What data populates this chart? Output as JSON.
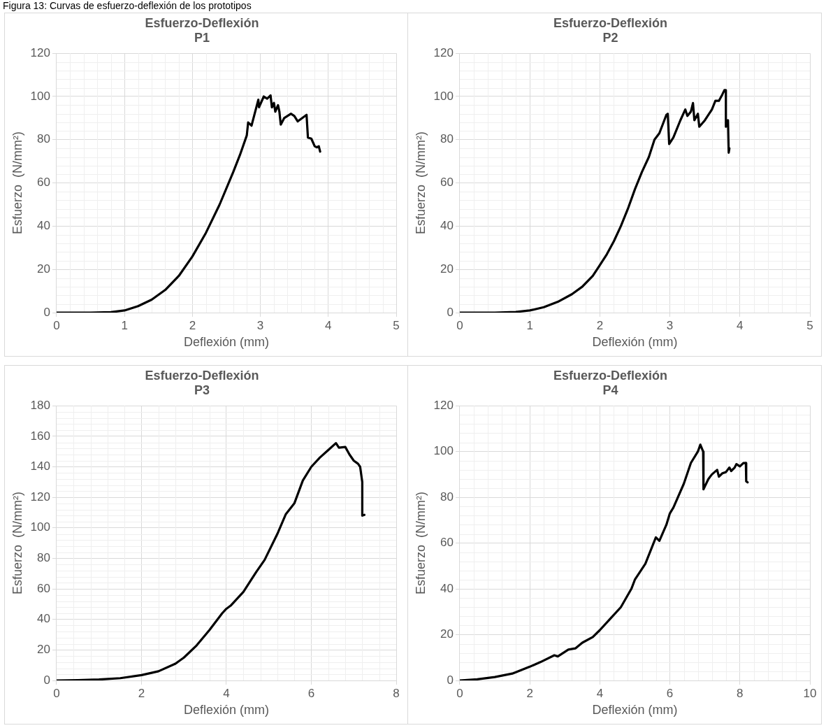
{
  "chart_data": [
    {
      "type": "line",
      "title": "Esfuerzo-Deflexión",
      "subtitle": "P1",
      "xlabel": "Deflexión (mm)",
      "ylabel": "Esfuerzo  (N/mm²)",
      "annotations": [
        "Figura 13: Curvas de esfuerzo-deflexión de los prototipos"
      ],
      "xlim": [
        0,
        5
      ],
      "xticks": [
        0,
        1,
        2,
        3,
        4,
        5
      ],
      "ylim": [
        0,
        120
      ],
      "yticks": [
        0,
        20,
        40,
        60,
        80,
        100,
        120
      ],
      "grid": true,
      "legend": false,
      "marker": "none",
      "line_style": "solid",
      "series": [
        {
          "color": "#000000",
          "x": [
            0,
            0.5,
            0.8,
            1.0,
            1.2,
            1.4,
            1.6,
            1.8,
            2.0,
            2.2,
            2.4,
            2.6,
            2.7,
            2.8,
            2.82,
            2.87,
            2.97,
            2.98,
            3.05,
            3.1,
            3.15,
            3.17,
            3.2,
            3.22,
            3.26,
            3.28,
            3.3,
            3.35,
            3.45,
            3.5,
            3.55,
            3.68,
            3.7,
            3.75,
            3.8,
            3.83,
            3.86,
            3.88
          ],
          "values": [
            0,
            0,
            0.2,
            1,
            3,
            6,
            10.5,
            17,
            26,
            37,
            50,
            65,
            73,
            82,
            88,
            86.5,
            98.5,
            95,
            100,
            99,
            100.5,
            95,
            97,
            93,
            96,
            93,
            87,
            90,
            92,
            91,
            88.5,
            91.5,
            81,
            80.5,
            77,
            76.5,
            77,
            74.5
          ]
        }
      ]
    },
    {
      "type": "line",
      "title": "Esfuerzo-Deflexión",
      "subtitle": "P2",
      "xlabel": "Deflexión (mm)",
      "ylabel": "Esfuerzo  (N/mm²)",
      "xlim": [
        0,
        5
      ],
      "xticks": [
        0,
        1,
        2,
        3,
        4,
        5
      ],
      "ylim": [
        0,
        120
      ],
      "yticks": [
        0,
        20,
        40,
        60,
        80,
        100,
        120
      ],
      "grid": true,
      "legend": false,
      "marker": "none",
      "line_style": "solid",
      "series": [
        {
          "color": "#000000",
          "x": [
            0,
            0.5,
            0.8,
            1.0,
            1.2,
            1.4,
            1.6,
            1.75,
            1.9,
            2.0,
            2.1,
            2.2,
            2.3,
            2.4,
            2.5,
            2.6,
            2.7,
            2.78,
            2.85,
            2.95,
            2.97,
            2.99,
            3.05,
            3.15,
            3.22,
            3.25,
            3.3,
            3.33,
            3.35,
            3.4,
            3.42,
            3.5,
            3.6,
            3.65,
            3.7,
            3.75,
            3.78,
            3.8,
            3.8,
            3.83,
            3.84,
            3.85
          ],
          "values": [
            0,
            0,
            0.3,
            1,
            2.5,
            5,
            8.5,
            12,
            17,
            22,
            27,
            33,
            40,
            48,
            57,
            65,
            72,
            80,
            83,
            91.5,
            92,
            78,
            81,
            89,
            94,
            91,
            93,
            97,
            89,
            92,
            86,
            89,
            94,
            98,
            98,
            101,
            103,
            103,
            86,
            89,
            74,
            76
          ]
        }
      ]
    },
    {
      "type": "line",
      "title": "Esfuerzo-Deflexión",
      "subtitle": "P3",
      "xlabel": "Deflexión (mm)",
      "ylabel": "Esfuerzo  (N/mm²)",
      "xlim": [
        0,
        8
      ],
      "xticks": [
        0,
        2,
        4,
        6,
        8
      ],
      "ylim": [
        0,
        180
      ],
      "yticks": [
        0,
        20,
        40,
        60,
        80,
        100,
        120,
        140,
        160,
        180
      ],
      "grid": true,
      "legend": false,
      "marker": "none",
      "line_style": "solid",
      "series": [
        {
          "color": "#000000",
          "x": [
            0,
            0.5,
            1,
            1.5,
            2,
            2.4,
            2.8,
            3.0,
            3.3,
            3.6,
            3.9,
            4.0,
            4.1,
            4.4,
            4.7,
            4.9,
            5.2,
            5.4,
            5.6,
            5.8,
            6.0,
            6.2,
            6.4,
            6.58,
            6.65,
            6.8,
            6.9,
            7.0,
            7.1,
            7.15,
            7.2,
            7.2,
            7.25
          ],
          "values": [
            0,
            0.2,
            0.6,
            1.5,
            3.5,
            6,
            11,
            15,
            23,
            33,
            44,
            47,
            49,
            58,
            71,
            79,
            96,
            109,
            116,
            131,
            140,
            146,
            151,
            155.5,
            152.5,
            153,
            148,
            144,
            142,
            140,
            130,
            108,
            108.5
          ]
        }
      ]
    },
    {
      "type": "line",
      "title": "Esfuerzo-Deflexión",
      "subtitle": "P4",
      "xlabel": "Deflexión (mm)",
      "ylabel": "Esfuerzo  (N/mm²)",
      "xlim": [
        0,
        10
      ],
      "xticks": [
        0,
        2,
        4,
        6,
        8,
        10
      ],
      "ylim": [
        0,
        120
      ],
      "yticks": [
        0,
        20,
        40,
        60,
        80,
        100,
        120
      ],
      "grid": true,
      "legend": false,
      "marker": "none",
      "line_style": "solid",
      "series": [
        {
          "color": "#000000",
          "x": [
            0,
            0.5,
            1,
            1.5,
            2,
            2.3,
            2.7,
            2.8,
            3.1,
            3.3,
            3.5,
            3.8,
            4.0,
            4.3,
            4.6,
            4.9,
            5.0,
            5.3,
            5.6,
            5.7,
            5.9,
            6.0,
            6.1,
            6.4,
            6.6,
            6.8,
            6.87,
            6.95,
            6.96,
            7.1,
            7.2,
            7.35,
            7.4,
            7.5,
            7.6,
            7.7,
            7.75,
            7.85,
            7.9,
            8.0,
            8.1,
            8.17,
            8.18,
            8.22
          ],
          "values": [
            0,
            0.5,
            1.5,
            3,
            6,
            8,
            11,
            10.5,
            13.5,
            14,
            16.5,
            19,
            22,
            27,
            32,
            40,
            44,
            51,
            62.5,
            61,
            68,
            73,
            75.5,
            86,
            95,
            100,
            103,
            100,
            83.5,
            88,
            90,
            92,
            89,
            90.5,
            91,
            93,
            91.5,
            93,
            94.5,
            93.5,
            95,
            95,
            87,
            86.5
          ]
        }
      ]
    }
  ]
}
